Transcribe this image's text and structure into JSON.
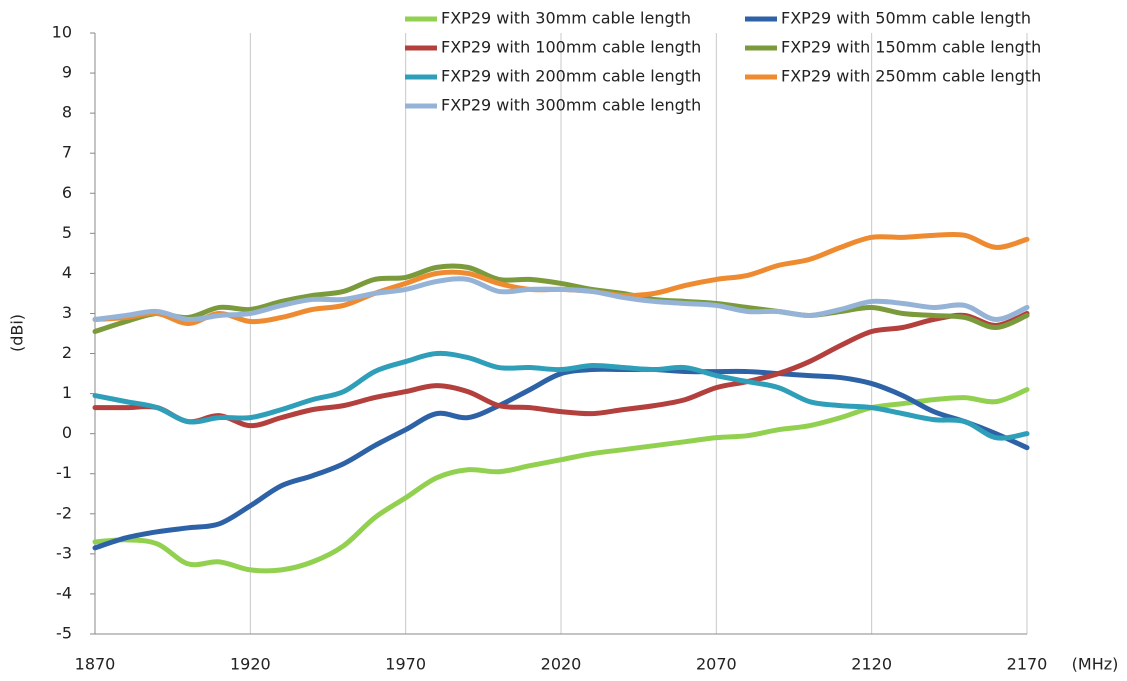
{
  "chart_data": {
    "type": "line",
    "xlabel": "(MHz)",
    "ylabel": "(dBi)",
    "x": [
      1870,
      1880,
      1890,
      1900,
      1910,
      1920,
      1930,
      1940,
      1950,
      1960,
      1970,
      1980,
      1990,
      2000,
      2010,
      2020,
      2030,
      2040,
      2050,
      2060,
      2070,
      2080,
      2090,
      2100,
      2110,
      2120,
      2130,
      2140,
      2150,
      2160,
      2170
    ],
    "series": [
      {
        "name": "FXP29 with 30mm cable length",
        "color": "#92d050",
        "values": [
          -2.7,
          -2.65,
          -2.75,
          -3.25,
          -3.2,
          -3.4,
          -3.4,
          -3.2,
          -2.8,
          -2.1,
          -1.6,
          -1.1,
          -0.9,
          -0.95,
          -0.8,
          -0.65,
          -0.5,
          -0.4,
          -0.3,
          -0.2,
          -0.1,
          -0.05,
          0.1,
          0.2,
          0.4,
          0.65,
          0.75,
          0.85,
          0.9,
          0.8,
          1.1
        ]
      },
      {
        "name": "FXP29 with 50mm cable length",
        "color": "#2e62a6",
        "values": [
          -2.85,
          -2.6,
          -2.45,
          -2.35,
          -2.25,
          -1.8,
          -1.3,
          -1.05,
          -0.75,
          -0.3,
          0.1,
          0.5,
          0.4,
          0.7,
          1.1,
          1.5,
          1.6,
          1.6,
          1.6,
          1.55,
          1.55,
          1.55,
          1.5,
          1.45,
          1.4,
          1.25,
          0.95,
          0.55,
          0.3,
          0,
          -0.35
        ]
      },
      {
        "name": "FXP29 with 100mm cable length",
        "color": "#b3403d",
        "values": [
          0.65,
          0.65,
          0.65,
          0.3,
          0.45,
          0.2,
          0.4,
          0.6,
          0.7,
          0.9,
          1.05,
          1.2,
          1.05,
          0.7,
          0.65,
          0.55,
          0.5,
          0.6,
          0.7,
          0.85,
          1.15,
          1.3,
          1.5,
          1.8,
          2.2,
          2.55,
          2.65,
          2.85,
          2.95,
          2.7,
          3.0
        ]
      },
      {
        "name": "FXP29 with 150mm cable length",
        "color": "#7a9a3c",
        "values": [
          2.55,
          2.8,
          3.0,
          2.9,
          3.15,
          3.1,
          3.3,
          3.45,
          3.55,
          3.85,
          3.9,
          4.15,
          4.15,
          3.85,
          3.85,
          3.75,
          3.6,
          3.5,
          3.35,
          3.3,
          3.25,
          3.15,
          3.05,
          2.95,
          3.05,
          3.15,
          3.0,
          2.95,
          2.9,
          2.65,
          2.95
        ]
      },
      {
        "name": "FXP29 with 200mm cable length",
        "color": "#2f9fb9",
        "values": [
          0.95,
          0.8,
          0.65,
          0.3,
          0.4,
          0.4,
          0.6,
          0.85,
          1.05,
          1.55,
          1.8,
          2.0,
          1.9,
          1.65,
          1.65,
          1.6,
          1.7,
          1.65,
          1.6,
          1.65,
          1.45,
          1.3,
          1.15,
          0.8,
          0.7,
          0.65,
          0.5,
          0.35,
          0.3,
          -0.1,
          0.0
        ]
      },
      {
        "name": "FXP29 with 250mm cable length",
        "color": "#ee8a30",
        "values": [
          2.85,
          2.9,
          3.0,
          2.75,
          3.0,
          2.8,
          2.9,
          3.1,
          3.2,
          3.5,
          3.75,
          4.0,
          4.0,
          3.75,
          3.6,
          3.6,
          3.55,
          3.45,
          3.5,
          3.7,
          3.85,
          3.95,
          4.2,
          4.35,
          4.65,
          4.9,
          4.9,
          4.95,
          4.95,
          4.65,
          4.85
        ]
      },
      {
        "name": "FXP29 with 300mm cable length",
        "color": "#95b3d7",
        "values": [
          2.85,
          2.95,
          3.05,
          2.85,
          2.95,
          3.0,
          3.2,
          3.35,
          3.35,
          3.5,
          3.6,
          3.8,
          3.85,
          3.55,
          3.6,
          3.6,
          3.55,
          3.4,
          3.3,
          3.25,
          3.2,
          3.05,
          3.05,
          2.95,
          3.1,
          3.3,
          3.25,
          3.15,
          3.2,
          2.85,
          3.15
        ]
      }
    ],
    "xlim": [
      1870,
      2170
    ],
    "xticks": [
      1870,
      1920,
      1970,
      2020,
      2070,
      2120,
      2170
    ],
    "ylim": [
      -5,
      10
    ],
    "yticks": [
      -5,
      -4,
      -3,
      -2,
      -1,
      0,
      1,
      2,
      3,
      4,
      5,
      6,
      7,
      8,
      9,
      10
    ],
    "grid": true,
    "legend": "top-right"
  }
}
